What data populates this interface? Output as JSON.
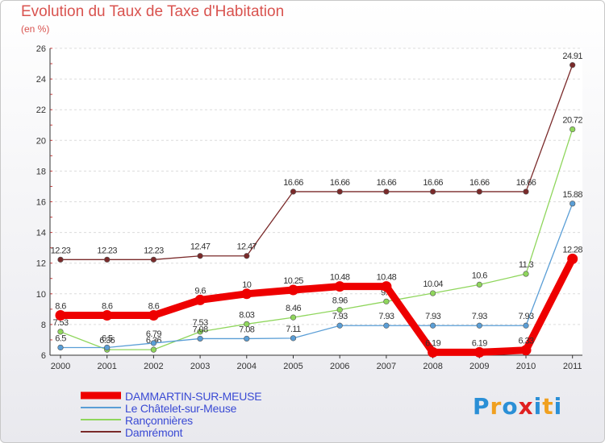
{
  "header": {
    "title": "Evolution du Taux de Taxe d'Habitation",
    "subtitle": "(en %)"
  },
  "logo": {
    "text": "Proxiti",
    "letters": [
      "P",
      "r",
      "o",
      "x",
      "i",
      "t",
      "i"
    ],
    "colors": [
      "#2a8fd6",
      "#f0a020",
      "#2a8fd6",
      "#e02020",
      "#2a8fd6",
      "#f0a020",
      "#2a8fd6"
    ]
  },
  "chart_data": {
    "type": "line",
    "x": [
      "2000",
      "2001",
      "2002",
      "2003",
      "2004",
      "2005",
      "2006",
      "2007",
      "2008",
      "2009",
      "2010",
      "2011"
    ],
    "ylim": [
      6,
      26
    ],
    "yticks": [
      "6",
      "8",
      "10",
      "12",
      "14",
      "16",
      "18",
      "20",
      "22",
      "24",
      "26"
    ],
    "grid": "horizontal",
    "legend_position": "bottom-left",
    "series": [
      {
        "name": "Damrémont",
        "color": "#7a2a2a",
        "values": [
          12.23,
          12.23,
          12.23,
          12.47,
          12.47,
          16.66,
          16.66,
          16.66,
          16.66,
          16.66,
          16.66,
          24.91
        ],
        "labels": [
          "12.23",
          "12.23",
          "12.23",
          "12.47",
          "12.47",
          "16.66",
          "16.66",
          "16.66",
          "16.66",
          "16.66",
          "16.66",
          "24.91"
        ]
      },
      {
        "name": "Rançonnières",
        "color": "#8fd65c",
        "values": [
          7.53,
          6.36,
          6.36,
          7.53,
          8.03,
          8.46,
          8.96,
          9.5,
          10.04,
          10.6,
          11.3,
          20.72
        ],
        "labels": [
          "7.53",
          "6.36",
          "6.36",
          "7.53",
          "8.03",
          "8.46",
          "8.96",
          "9.5",
          "10.04",
          "10.6",
          "11.3",
          "20.72"
        ]
      },
      {
        "name": "Le Châtelet-sur-Meuse",
        "color": "#5a9ed6",
        "values": [
          6.5,
          6.5,
          6.79,
          7.08,
          7.08,
          7.11,
          7.93,
          7.93,
          7.93,
          7.93,
          7.93,
          15.88
        ],
        "labels": [
          "6.5",
          "6.5",
          "6.79",
          "7.08",
          "7.08",
          "7.11",
          "7.93",
          "7.93",
          "7.93",
          "7.93",
          "7.93",
          "15.88"
        ]
      },
      {
        "name": "DAMMARTIN-SUR-MEUSE",
        "color": "#ee0000",
        "values": [
          8.6,
          8.6,
          8.6,
          9.6,
          10,
          10.25,
          10.48,
          10.48,
          6.19,
          6.19,
          6.33,
          12.28
        ],
        "labels": [
          "8.6",
          "8.6",
          "8.6",
          "9.6",
          "10",
          "10.25",
          "10.48",
          "10.48",
          "6.19",
          "6.19",
          "6.33",
          "12.28"
        ]
      }
    ],
    "legend": [
      "DAMMARTIN-SUR-MEUSE",
      "Le Châtelet-sur-Meuse",
      "Rançonnières",
      "Damrémont"
    ]
  }
}
